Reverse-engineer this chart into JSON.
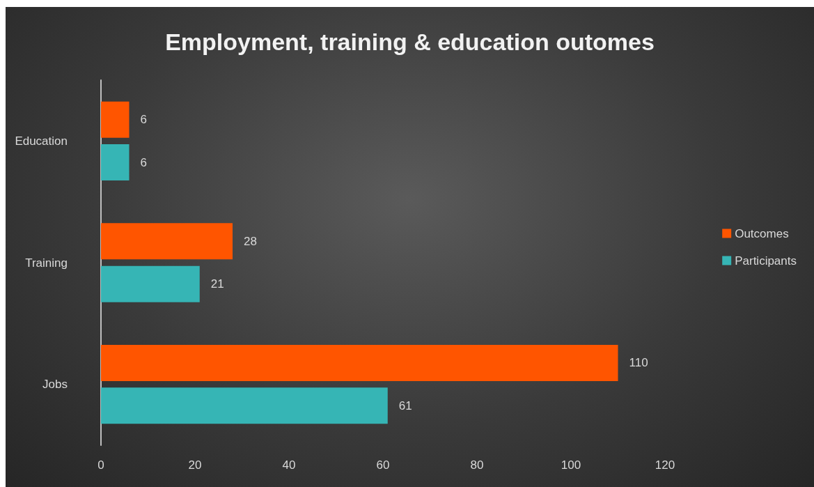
{
  "chart_data": {
    "type": "bar",
    "orientation": "horizontal",
    "title": "Employment, training & education outomes",
    "categories": [
      "Education",
      "Training",
      "Jobs"
    ],
    "series": [
      {
        "name": "Outcomes",
        "color": "#ff5500",
        "values": [
          6,
          28,
          110
        ]
      },
      {
        "name": "Participants",
        "color": "#36b5b5",
        "values": [
          6,
          21,
          61
        ]
      }
    ],
    "xlim": [
      0,
      120
    ],
    "xticks": [
      0,
      20,
      40,
      60,
      80,
      100,
      120
    ],
    "grid": false,
    "legend": "right",
    "data_labels": true
  }
}
